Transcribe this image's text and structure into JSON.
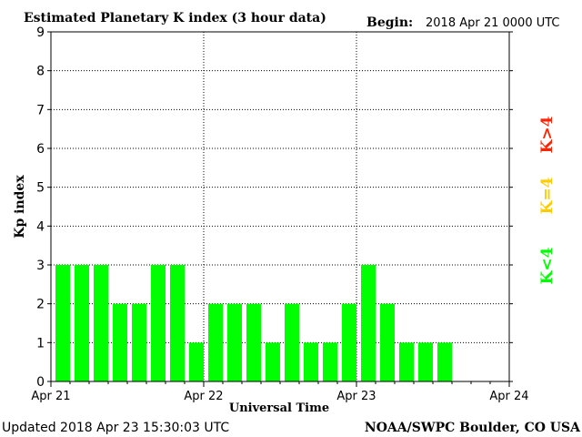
{
  "header": {
    "title": "Estimated Planetary K index (3 hour data)",
    "begin_label": "Begin:",
    "begin_value": "2018 Apr 21 0000 UTC"
  },
  "footer": {
    "updated": "Updated 2018 Apr 23 15:30:03 UTC",
    "source": "NOAA/SWPC Boulder, CO USA"
  },
  "legend": {
    "above": "K>4",
    "equal": "K=4",
    "below": "K<4"
  },
  "colors": {
    "below": "#00ff00",
    "equal": "#ffcc00",
    "above": "#ff2200",
    "axis": "#000000",
    "grid": "#000000"
  },
  "chart_data": {
    "type": "bar",
    "title": "Estimated Planetary K index (3 hour data)",
    "xlabel": "Universal Time",
    "ylabel": "Kp index",
    "ylim": [
      0,
      9
    ],
    "yticks": [
      "0",
      "1",
      "2",
      "3",
      "4",
      "5",
      "6",
      "7",
      "8",
      "9"
    ],
    "xticks": [
      "Apr 21",
      "Apr 22",
      "Apr 23",
      "Apr 24"
    ],
    "grid": true,
    "values": [
      3,
      3,
      3,
      2,
      2,
      3,
      3,
      1,
      2,
      2,
      2,
      1,
      2,
      1,
      1,
      2,
      3,
      2,
      1,
      1,
      1
    ]
  }
}
